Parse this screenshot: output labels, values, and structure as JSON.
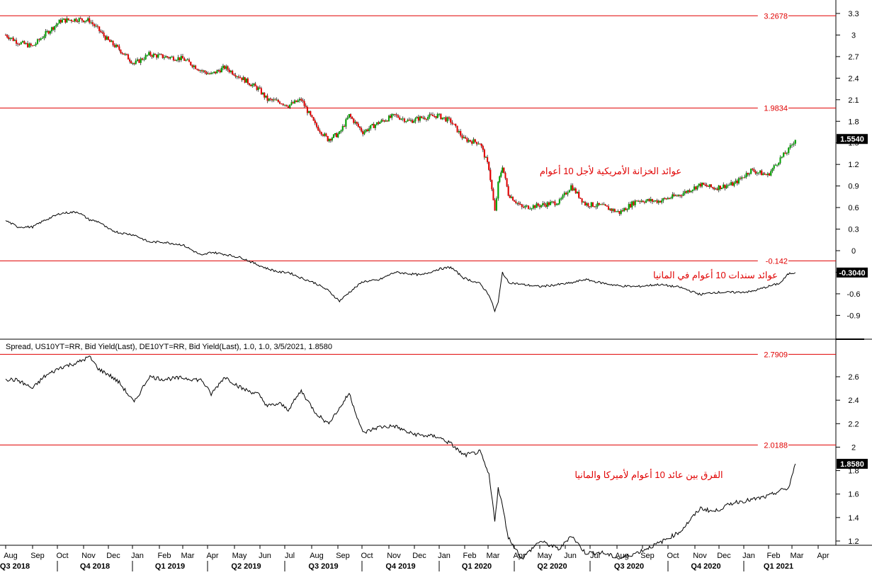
{
  "chart_data": [
    {
      "panel": "yields",
      "type": "line",
      "title": "",
      "y_axis": {
        "side": "right",
        "ylim": [
          -1.05,
          3.4
        ],
        "ticks": [
          -0.9,
          -0.6,
          -0.3,
          0,
          0.3,
          0.6,
          0.9,
          1.2,
          1.5,
          1.8,
          2.1,
          2.4,
          2.7,
          3,
          3.3
        ],
        "tick_labels": [
          "-0.9",
          "-0.6",
          "-0.3",
          "0",
          "0.3",
          "0.6",
          "0.9",
          "1.2",
          "1.5",
          "1.8",
          "2.1",
          "2.4",
          "2.7",
          "3",
          "3.3"
        ]
      },
      "reference_lines": [
        {
          "value": 3.2678,
          "label": "3.2678",
          "color": "#e00000"
        },
        {
          "value": 1.9834,
          "label": "1.9834",
          "color": "#e00000"
        },
        {
          "value": -0.142,
          "label": "-0.142",
          "color": "#e00000"
        }
      ],
      "last_value_labels": [
        {
          "value": 1.554,
          "label": "1.5540"
        },
        {
          "value": -0.304,
          "label": "-0.3040"
        }
      ],
      "annotations": [
        {
          "text": "عوائد الخزانة الأمريكية لأجل 10 أعوام",
          "color": "#e00000"
        },
        {
          "text": "عوائد سندات 10 أعوام في المانيا",
          "color": "#e00000"
        }
      ],
      "series": [
        {
          "style": "candlestick",
          "up_color": "#00a000",
          "down_color": "#e00000",
          "x": [
            "2018-08-01",
            "2018-08-15",
            "2018-09-01",
            "2018-09-15",
            "2018-10-05",
            "2018-10-25",
            "2018-11-08",
            "2018-11-20",
            "2018-12-01",
            "2018-12-15",
            "2019-01-03",
            "2019-01-20",
            "2019-02-05",
            "2019-03-01",
            "2019-03-25",
            "2019-04-05",
            "2019-04-20",
            "2019-05-10",
            "2019-05-30",
            "2019-06-10",
            "2019-06-25",
            "2019-07-05",
            "2019-07-20",
            "2019-08-05",
            "2019-08-20",
            "2019-09-03",
            "2019-09-15",
            "2019-10-02",
            "2019-10-20",
            "2019-11-08",
            "2019-11-25",
            "2019-12-10",
            "2019-12-30",
            "2020-01-15",
            "2020-01-31",
            "2020-02-20",
            "2020-03-02",
            "2020-03-09",
            "2020-03-13",
            "2020-03-18",
            "2020-03-25",
            "2020-04-10",
            "2020-05-01",
            "2020-05-25",
            "2020-06-08",
            "2020-06-25",
            "2020-07-15",
            "2020-08-04",
            "2020-08-25",
            "2020-09-20",
            "2020-10-15",
            "2020-11-08",
            "2020-11-25",
            "2020-12-20",
            "2021-01-10",
            "2021-01-31",
            "2021-02-15",
            "2021-02-25",
            "2021-03-05"
          ],
          "y": [
            3.0,
            2.9,
            2.84,
            3.0,
            3.2,
            3.22,
            3.2,
            3.06,
            2.92,
            2.8,
            2.6,
            2.73,
            2.7,
            2.67,
            2.5,
            2.45,
            2.55,
            2.4,
            2.25,
            2.1,
            2.07,
            2.02,
            2.1,
            1.75,
            1.55,
            1.63,
            1.88,
            1.65,
            1.78,
            1.88,
            1.8,
            1.85,
            1.88,
            1.8,
            1.55,
            1.5,
            1.15,
            0.54,
            0.93,
            1.18,
            0.79,
            0.6,
            0.63,
            0.68,
            0.9,
            0.65,
            0.62,
            0.53,
            0.7,
            0.69,
            0.78,
            0.92,
            0.87,
            0.93,
            1.12,
            1.05,
            1.28,
            1.4,
            1.554
          ]
        },
        {
          "style": "line",
          "color": "#000000",
          "x": [
            "2018-08-01",
            "2018-08-15",
            "2018-09-01",
            "2018-09-15",
            "2018-10-05",
            "2018-10-25",
            "2018-11-08",
            "2018-11-20",
            "2018-12-01",
            "2018-12-15",
            "2019-01-03",
            "2019-01-20",
            "2019-02-05",
            "2019-03-01",
            "2019-03-25",
            "2019-04-05",
            "2019-04-20",
            "2019-05-10",
            "2019-05-30",
            "2019-06-10",
            "2019-06-25",
            "2019-07-05",
            "2019-07-20",
            "2019-08-05",
            "2019-08-20",
            "2019-09-03",
            "2019-09-15",
            "2019-10-02",
            "2019-10-20",
            "2019-11-08",
            "2019-11-25",
            "2019-12-10",
            "2019-12-30",
            "2020-01-15",
            "2020-01-31",
            "2020-02-20",
            "2020-03-02",
            "2020-03-09",
            "2020-03-13",
            "2020-03-18",
            "2020-03-25",
            "2020-04-10",
            "2020-05-01",
            "2020-05-25",
            "2020-06-08",
            "2020-06-25",
            "2020-07-15",
            "2020-08-04",
            "2020-08-25",
            "2020-09-20",
            "2020-10-15",
            "2020-11-08",
            "2020-11-25",
            "2020-12-20",
            "2021-01-10",
            "2021-01-31",
            "2021-02-15",
            "2021-02-25",
            "2021-03-05"
          ],
          "y": [
            0.42,
            0.33,
            0.33,
            0.42,
            0.52,
            0.54,
            0.43,
            0.4,
            0.3,
            0.25,
            0.22,
            0.12,
            0.12,
            0.08,
            -0.07,
            -0.02,
            -0.05,
            -0.1,
            -0.2,
            -0.25,
            -0.3,
            -0.3,
            -0.38,
            -0.45,
            -0.55,
            -0.7,
            -0.58,
            -0.43,
            -0.41,
            -0.3,
            -0.32,
            -0.34,
            -0.26,
            -0.23,
            -0.38,
            -0.46,
            -0.61,
            -0.84,
            -0.72,
            -0.3,
            -0.44,
            -0.47,
            -0.5,
            -0.47,
            -0.45,
            -0.4,
            -0.45,
            -0.49,
            -0.5,
            -0.47,
            -0.51,
            -0.61,
            -0.58,
            -0.58,
            -0.57,
            -0.5,
            -0.45,
            -0.32,
            -0.304
          ]
        }
      ]
    },
    {
      "panel": "spread",
      "type": "line",
      "title": "Spread, US10YT=RR, Bid Yield(Last), DE10YT=RR, Bid Yield(Last),  1.0, 1.0, 3/5/2021, 1.8580",
      "y_axis": {
        "side": "right",
        "ylim": [
          0.98,
          2.88
        ],
        "ticks": [
          1.2,
          1.4,
          1.6,
          1.8,
          2,
          2.2,
          2.4,
          2.6
        ],
        "tick_labels": [
          "1.2",
          "1.4",
          "1.6",
          "1.8",
          "2",
          "2.2",
          "2.4",
          "2.6"
        ]
      },
      "reference_lines": [
        {
          "value": 2.7909,
          "label": "2.7909",
          "color": "#e00000"
        },
        {
          "value": 2.0188,
          "label": "2.0188",
          "color": "#e00000"
        }
      ],
      "last_value_labels": [
        {
          "value": 1.858,
          "label": "1.8580"
        }
      ],
      "annotations": [
        {
          "text": "الفرق بين عائد 10 أعوام لأميركا والمانيا",
          "color": "#e00000"
        }
      ],
      "series": [
        {
          "style": "line",
          "color": "#000000",
          "x": [
            "2018-08-01",
            "2018-08-15",
            "2018-09-01",
            "2018-09-15",
            "2018-10-05",
            "2018-10-25",
            "2018-11-08",
            "2018-11-20",
            "2018-12-01",
            "2018-12-15",
            "2019-01-03",
            "2019-01-20",
            "2019-02-05",
            "2019-03-01",
            "2019-03-25",
            "2019-04-05",
            "2019-04-20",
            "2019-05-10",
            "2019-05-30",
            "2019-06-10",
            "2019-06-25",
            "2019-07-05",
            "2019-07-20",
            "2019-08-05",
            "2019-08-20",
            "2019-09-03",
            "2019-09-15",
            "2019-10-02",
            "2019-10-20",
            "2019-11-08",
            "2019-11-25",
            "2019-12-10",
            "2019-12-30",
            "2020-01-15",
            "2020-01-31",
            "2020-02-20",
            "2020-03-02",
            "2020-03-09",
            "2020-03-13",
            "2020-03-18",
            "2020-03-25",
            "2020-04-10",
            "2020-05-01",
            "2020-05-25",
            "2020-06-08",
            "2020-06-25",
            "2020-07-15",
            "2020-08-04",
            "2020-08-25",
            "2020-09-20",
            "2020-10-15",
            "2020-11-08",
            "2020-11-25",
            "2020-12-20",
            "2021-01-10",
            "2021-01-31",
            "2021-02-15",
            "2021-02-25",
            "2021-03-05"
          ],
          "y": [
            2.58,
            2.57,
            2.5,
            2.6,
            2.68,
            2.72,
            2.77,
            2.66,
            2.62,
            2.55,
            2.38,
            2.6,
            2.58,
            2.59,
            2.57,
            2.45,
            2.6,
            2.5,
            2.45,
            2.35,
            2.37,
            2.32,
            2.48,
            2.3,
            2.2,
            2.33,
            2.46,
            2.12,
            2.17,
            2.18,
            2.12,
            2.1,
            2.09,
            2.03,
            1.93,
            1.96,
            1.76,
            1.38,
            1.65,
            1.5,
            1.23,
            1.05,
            1.2,
            1.13,
            1.25,
            1.1,
            1.1,
            1.05,
            1.1,
            1.18,
            1.28,
            1.48,
            1.45,
            1.53,
            1.55,
            1.58,
            1.63,
            1.65,
            1.858
          ]
        }
      ]
    },
    {
      "panel": "date_axis",
      "type": "axis",
      "months": [
        "Aug",
        "Sep",
        "Oct",
        "Nov",
        "Dec",
        "Jan",
        "Feb",
        "Mar",
        "Apr",
        "May",
        "Jun",
        "Jul",
        "Aug",
        "Sep",
        "Oct",
        "Nov",
        "Dec",
        "Jan",
        "Feb",
        "Mar",
        "Apr",
        "May",
        "Jun",
        "Jul",
        "Aug",
        "Sep",
        "Oct",
        "Nov",
        "Dec",
        "Jan",
        "Feb",
        "Mar",
        "Apr"
      ],
      "month_dates": [
        "2018-08-01",
        "2018-09-01",
        "2018-10-01",
        "2018-11-01",
        "2018-12-01",
        "2019-01-01",
        "2019-02-01",
        "2019-03-01",
        "2019-04-01",
        "2019-05-01",
        "2019-06-01",
        "2019-07-01",
        "2019-08-01",
        "2019-09-01",
        "2019-10-01",
        "2019-11-01",
        "2019-12-01",
        "2020-01-01",
        "2020-02-01",
        "2020-03-01",
        "2020-04-01",
        "2020-05-01",
        "2020-06-01",
        "2020-07-01",
        "2020-08-01",
        "2020-09-01",
        "2020-10-01",
        "2020-11-01",
        "2020-12-01",
        "2021-01-01",
        "2021-02-01",
        "2021-03-01",
        "2021-04-01"
      ],
      "quarters": [
        "Q3 2018",
        "Q4 2018",
        "Q1 2019",
        "Q2 2019",
        "Q3 2019",
        "Q4 2019",
        "Q1 2020",
        "Q2 2020",
        "Q3 2020",
        "Q4 2020",
        "Q1 2021"
      ],
      "quarter_dates": [
        [
          "2018-07-01",
          "2018-10-01"
        ],
        [
          "2018-10-01",
          "2019-01-01"
        ],
        [
          "2019-01-01",
          "2019-04-01"
        ],
        [
          "2019-04-01",
          "2019-07-01"
        ],
        [
          "2019-07-01",
          "2019-10-01"
        ],
        [
          "2019-10-01",
          "2020-01-01"
        ],
        [
          "2020-01-01",
          "2020-04-01"
        ],
        [
          "2020-04-01",
          "2020-07-01"
        ],
        [
          "2020-07-01",
          "2020-10-01"
        ],
        [
          "2020-10-01",
          "2021-01-01"
        ],
        [
          "2021-01-01",
          "2021-04-01"
        ]
      ]
    }
  ]
}
